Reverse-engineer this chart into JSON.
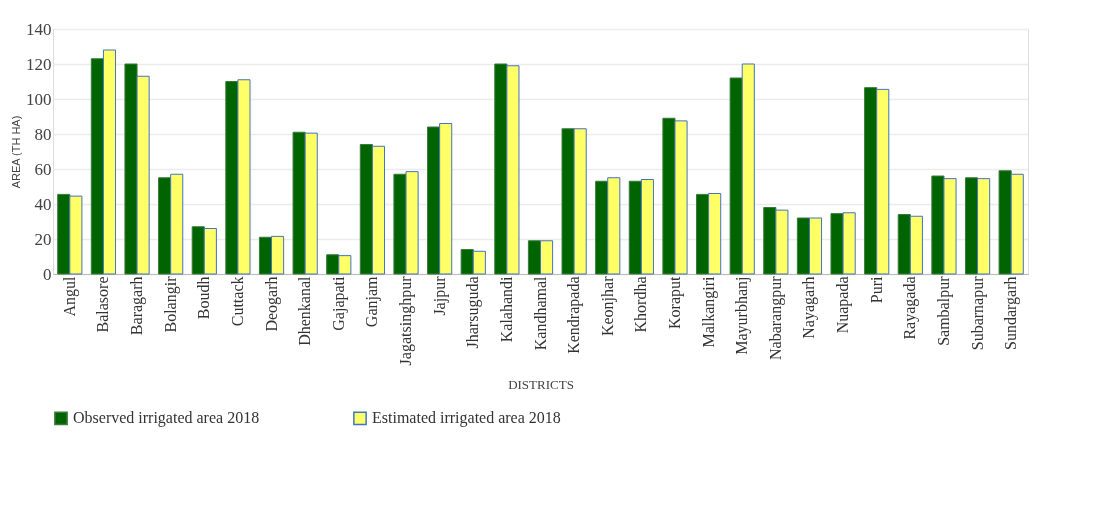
{
  "chart_data": {
    "type": "bar",
    "xlabel": "DISTRICTS",
    "ylabel": "AREA (TH HA)",
    "categories": [
      "Angul",
      "Balasore",
      "Baragarh",
      "Bolangir",
      "Boudh",
      "Cuttack",
      "Deogarh",
      "Dhenkanal",
      "Gajapati",
      "Ganjam",
      "Jagatsinghpur",
      "Jajpur",
      "Jharsuguda",
      "Kalahandi",
      "Kandhamal",
      "Kendrapada",
      "Keonjhar",
      "Khordha",
      "Koraput",
      "Malkangiri",
      "Mayurbhanj",
      "Nabarangpur",
      "Nayagarh",
      "Nuapada",
      "Puri",
      "Rayagada",
      "Sambalpur",
      "Subarnapur",
      "Sundargarh"
    ],
    "series": [
      {
        "name": "Observed irrigated area 2018",
        "color": "#006400",
        "values": [
          45.5,
          123,
          120,
          55,
          27,
          110,
          21,
          81,
          11,
          74,
          57,
          84,
          14,
          120,
          19,
          83,
          53,
          53,
          89,
          45.5,
          112,
          38,
          32,
          34.5,
          106.5,
          34,
          56,
          55,
          59
        ]
      },
      {
        "name": "Estimated irrigated area 2018",
        "color": "#ffff66",
        "values": [
          44.5,
          128,
          113,
          57,
          26,
          111,
          21.5,
          80.5,
          10.5,
          73,
          58.5,
          86,
          13,
          119,
          19,
          83,
          55,
          54,
          87.5,
          46,
          120,
          36.5,
          32,
          35,
          105.5,
          33,
          54.5,
          54.5,
          57
        ]
      }
    ],
    "ylim": [
      0,
      140
    ],
    "yticks": [
      0,
      20,
      40,
      60,
      80,
      100,
      120,
      140
    ],
    "grid": "y",
    "legend": "bottom"
  }
}
